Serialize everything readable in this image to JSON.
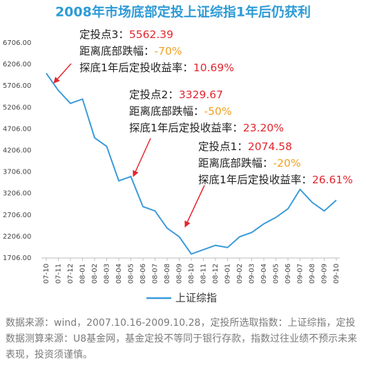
{
  "chart_data": {
    "type": "line",
    "title": "2008年市场底部定投上证综指1年后仍获利",
    "categories": [
      "07-10",
      "07-11",
      "07-12",
      "08-01",
      "08-02",
      "08-03",
      "08-04",
      "08-05",
      "08-06",
      "08-07",
      "08-08",
      "08-09",
      "08-10",
      "08-11",
      "08-12",
      "09-01",
      "09-02",
      "09-03",
      "09-04",
      "09-05",
      "09-06",
      "09-07",
      "09-08",
      "09-09",
      "09-10"
    ],
    "series": [
      {
        "name": "上证综指",
        "color": "#3a9ad9",
        "values": [
          6000,
          5600,
          5300,
          5400,
          4500,
          4300,
          3500,
          3600,
          2900,
          2800,
          2400,
          2200,
          1800,
          1900,
          2000,
          1950,
          2200,
          2300,
          2500,
          2650,
          2850,
          3300,
          3000,
          2800,
          3050
        ]
      }
    ],
    "ylim": [
      1706,
      6706
    ],
    "yticks": [
      {
        "value": 1706,
        "label": "1706.00"
      },
      {
        "value": 2206,
        "label": "2206.00"
      },
      {
        "value": 2706,
        "label": "2706.00"
      },
      {
        "value": 3206,
        "label": "3206.00"
      },
      {
        "value": 3706,
        "label": "3706.00"
      },
      {
        "value": 4206,
        "label": "4206.00"
      },
      {
        "value": 4706,
        "label": "4706.00"
      },
      {
        "value": 5206,
        "label": "5206.00"
      },
      {
        "value": 5706,
        "label": "5706.00"
      },
      {
        "value": 6206,
        "label": "6206.00"
      },
      {
        "value": 6706,
        "label": "6706.00"
      }
    ],
    "grid": false,
    "legend": "bottom",
    "annotations": [
      {
        "point_label": "定投点3：",
        "point_value": "5562.39",
        "drop_label": "距离底部跌幅：",
        "drop_value": "-70%",
        "return_label": "探底1年后定投收益率：",
        "return_value": "10.69%"
      },
      {
        "point_label": "定投点2：",
        "point_value": "3329.67",
        "drop_label": "距离底部跌幅：",
        "drop_value": "-50%",
        "return_label": "探底1年后定投收益率：",
        "return_value": "23.20%"
      },
      {
        "point_label": "定投点1：",
        "point_value": "2074.58",
        "drop_label": "距离底部跌幅：",
        "drop_value": "-20%",
        "return_label": "探底1年后定投收益率：",
        "return_value": "26.61%"
      }
    ],
    "source": "数据来源：wind，2007.10.16-2009.10.28，定投所选取指数：上证综指，定投数据测算来源：U8基金网，基金定投不等同于银行存款，指数过往业绩不预示未来表现，投资须谨慎。"
  }
}
